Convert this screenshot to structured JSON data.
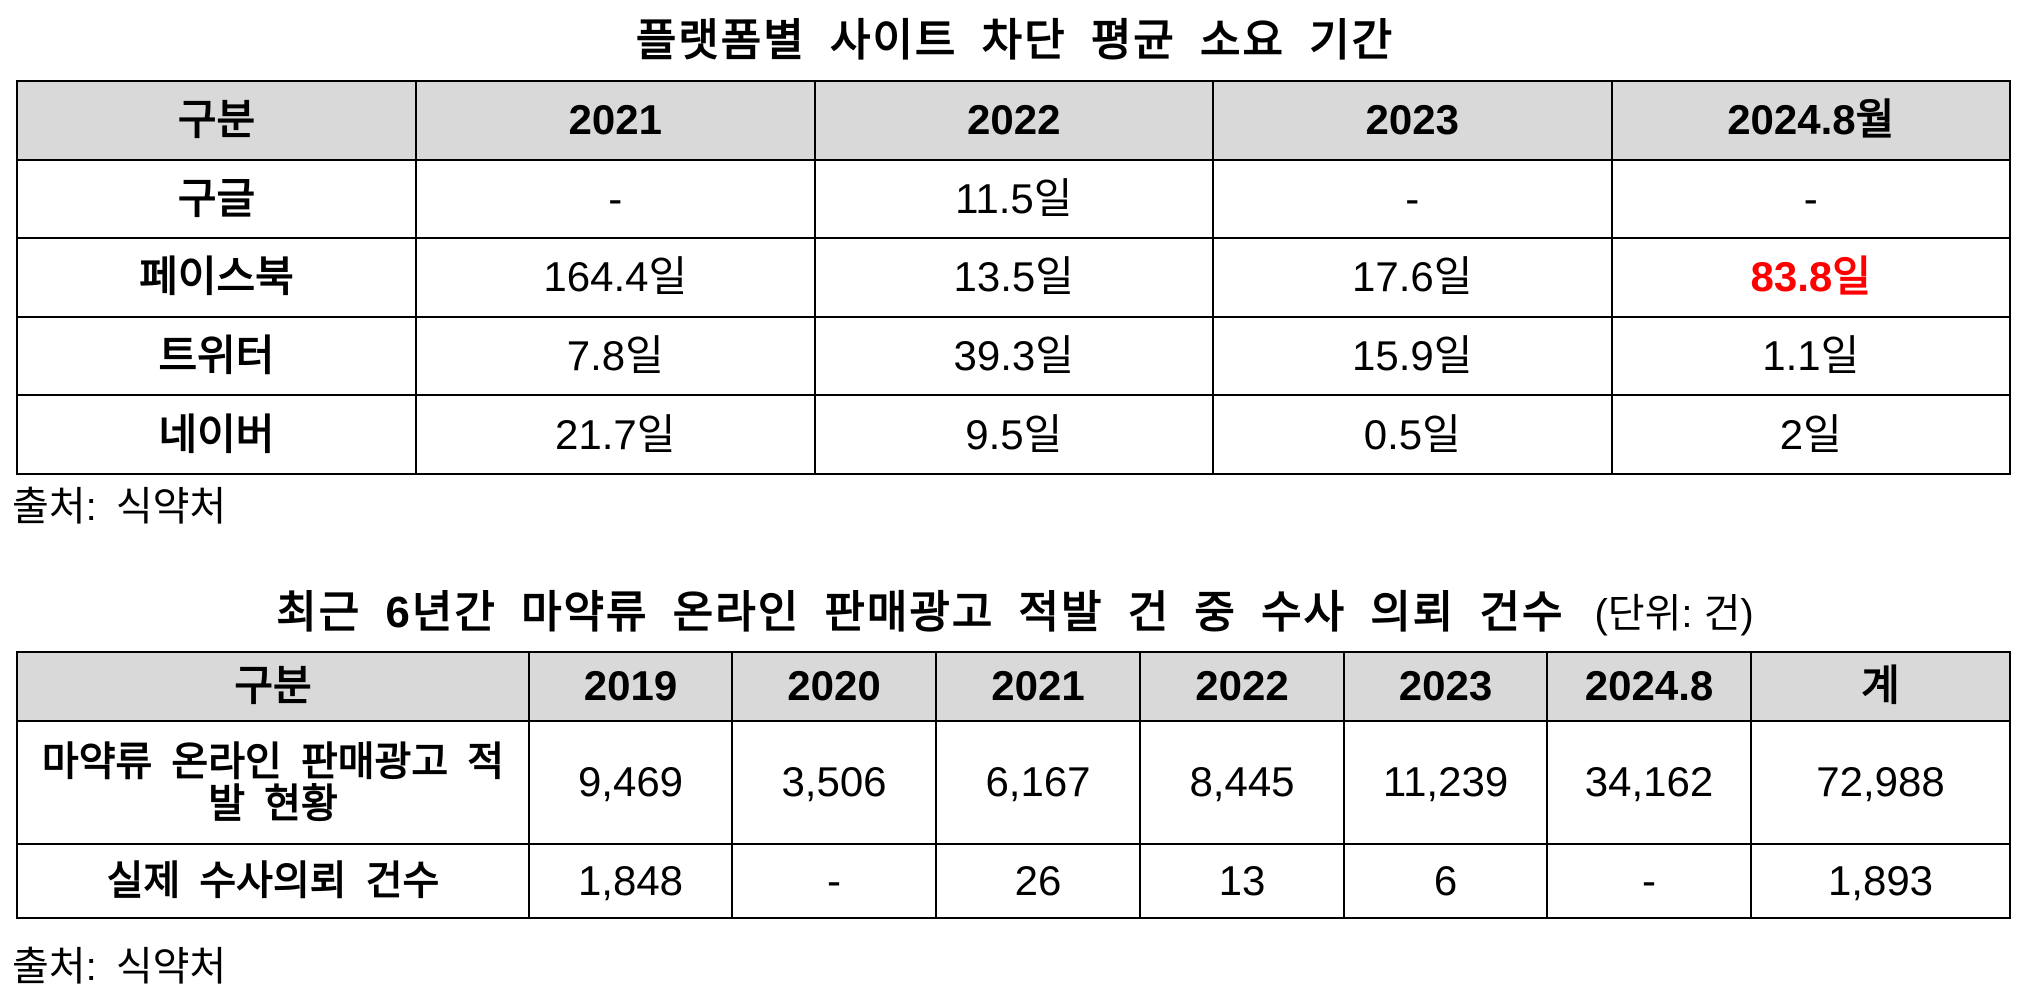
{
  "table1": {
    "title": "플랫폼별 사이트 차단 평균 소요 기간",
    "header": [
      "구분",
      "2021",
      "2022",
      "2023",
      "2024.8월"
    ],
    "rows": [
      [
        "구글",
        "-",
        "11.5일",
        "-",
        "-"
      ],
      [
        "페이스북",
        "164.4일",
        "13.5일",
        "17.6일",
        "83.8일"
      ],
      [
        "트위터",
        "7.8일",
        "39.3일",
        "15.9일",
        "1.1일"
      ],
      [
        "네이버",
        "21.7일",
        "9.5일",
        "0.5일",
        "2일"
      ]
    ],
    "source": "출처: 식약처"
  },
  "table2": {
    "title": "최근 6년간 마약류 온라인 판매광고 적발 건 중 수사 의뢰 건수",
    "unit": "(단위: 건)",
    "header": [
      "구분",
      "2019",
      "2020",
      "2021",
      "2022",
      "2023",
      "2024.8",
      "계"
    ],
    "rows": [
      [
        "마약류 온라인 판매광고 적발 현황",
        "9,469",
        "3,506",
        "6,167",
        "8,445",
        "11,239",
        "34,162",
        "72,988"
      ],
      [
        "실제 수사의뢰 건수",
        "1,848",
        "-",
        "26",
        "13",
        "6",
        "-",
        "1,893"
      ]
    ],
    "source": "출처: 식약처"
  }
}
